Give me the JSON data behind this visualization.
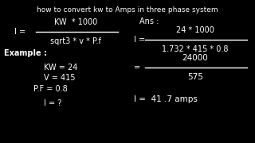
{
  "bg_color": "#000000",
  "text_color": "#ffffff",
  "title": "how to convert kw to Amps in three phase system",
  "title_fontsize": 6.5,
  "formula_label": "I =",
  "formula_num": "KW  * 1000",
  "formula_den": "sqrt3 * v * P.f",
  "example_label": "Example :",
  "ex_kw": "KW = 24",
  "ex_v": "V = 415",
  "ex_pf": "P.F = 0.8",
  "ex_i": "I = ?",
  "ans_label": "Ans :",
  "ans_i_label": "I =",
  "ans_num": "24 * 1000",
  "ans_den": "1.732 * 415 * 0.8",
  "ans_eq": "=",
  "ans_num2": "24000",
  "ans_den2": "575",
  "ans_result": "I =  41 .7 amps"
}
